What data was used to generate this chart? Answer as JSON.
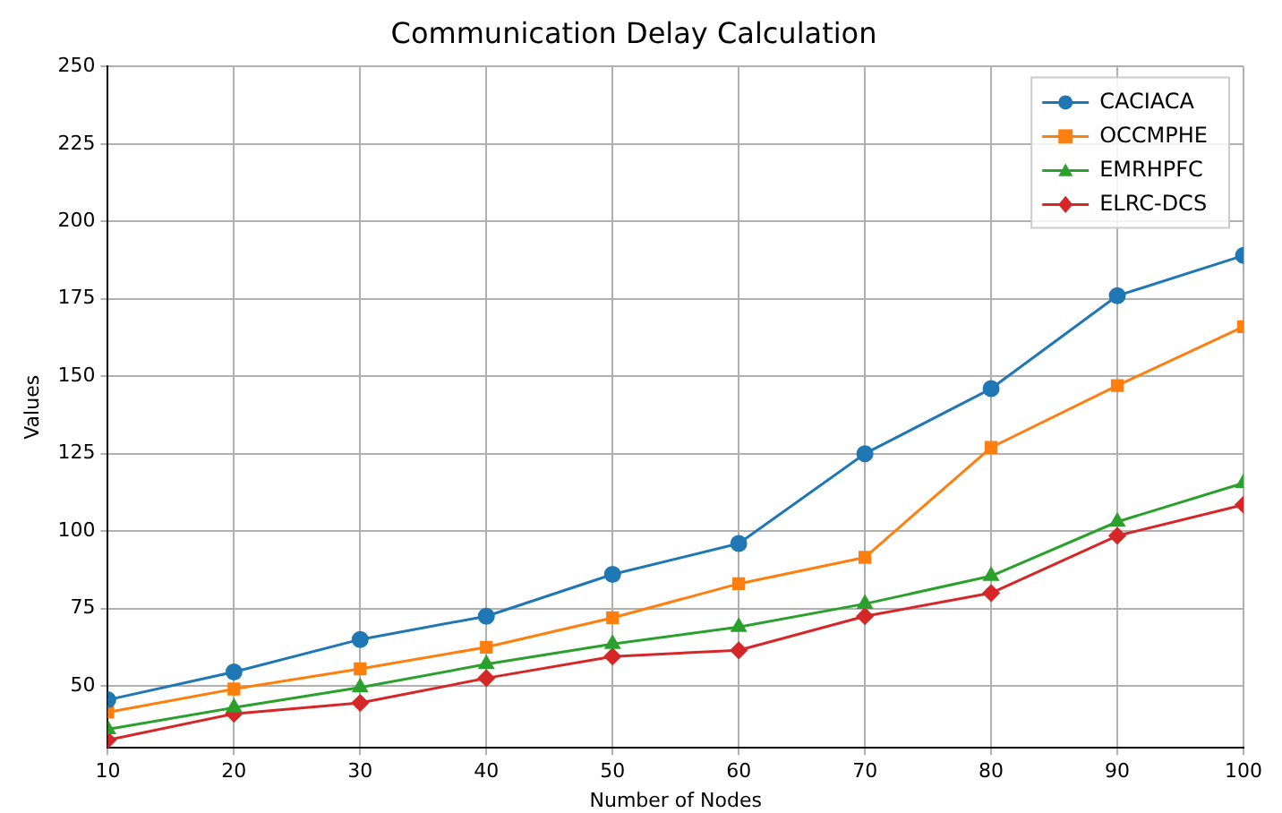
{
  "chart_data": {
    "type": "line",
    "title": "Communication Delay Calculation",
    "xlabel": "Number of Nodes",
    "ylabel": "Values",
    "x": [
      10,
      20,
      30,
      40,
      50,
      60,
      70,
      80,
      90,
      100
    ],
    "xlim": [
      10,
      100
    ],
    "xticks": [
      10,
      20,
      30,
      40,
      50,
      60,
      70,
      80,
      90,
      100
    ],
    "ylim": [
      30,
      250
    ],
    "yticks": [
      50,
      75,
      100,
      125,
      150,
      175,
      200,
      225,
      250
    ],
    "grid": true,
    "legend": "top right",
    "line_style": "solid",
    "series": [
      {
        "name": "CACIACA",
        "color": "#1f77b4",
        "marker": "circle",
        "values": [
          45.5,
          54.5,
          65,
          72.5,
          86,
          96,
          125,
          146,
          176,
          189
        ]
      },
      {
        "name": "OCCMPHE",
        "color": "#ff7f0e",
        "marker": "square",
        "values": [
          41.5,
          49,
          55.5,
          62.5,
          72,
          83,
          91.5,
          127,
          147,
          166
        ]
      },
      {
        "name": "EMRHPFC",
        "color": "#2ca02c",
        "marker": "triangle",
        "values": [
          36,
          43,
          49.5,
          57,
          63.5,
          69,
          76.5,
          85.5,
          103,
          115.5
        ]
      },
      {
        "name": "ELRC-DCS",
        "color": "#d62728",
        "marker": "diamond",
        "values": [
          32.5,
          41,
          44.5,
          52.5,
          59.5,
          61.5,
          72.5,
          80,
          98.5,
          108.5
        ]
      }
    ]
  }
}
